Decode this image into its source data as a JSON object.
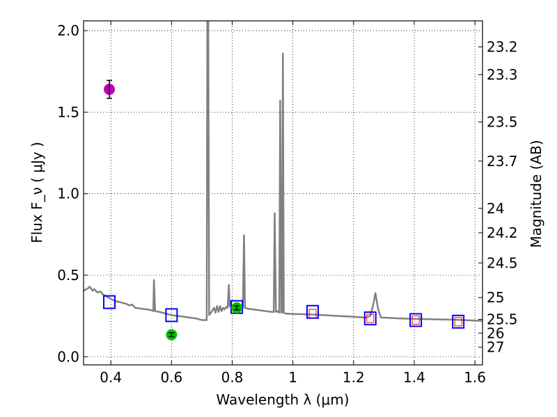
{
  "chart_data": {
    "type": "line",
    "title": "",
    "xlabel": "Wavelength  λ (μm)",
    "ylabel": "Flux  F_ν  ( μJy )",
    "y2label": "Magnitude (AB)",
    "xlim": [
      0.31,
      1.625
    ],
    "ylim": [
      -0.05,
      2.06
    ],
    "grid": true,
    "grid_style": "dotted",
    "xticks": [
      0.4,
      0.6,
      0.8,
      1.0,
      1.2,
      1.4,
      1.6
    ],
    "xtick_labels": [
      "0.4",
      "0.6",
      "0.8",
      "1",
      "1.2",
      "1.4",
      "1.6"
    ],
    "yticks": [
      0.0,
      0.5,
      1.0,
      1.5,
      2.0
    ],
    "ytick_labels": [
      "0.0",
      "0.5",
      "1.0",
      "1.5",
      "2.0"
    ],
    "magnitude_ticks": [
      {
        "label": "23.2",
        "flux": 1.9
      },
      {
        "label": "23.3",
        "flux": 1.73
      },
      {
        "label": "23.5",
        "flux": 1.44
      },
      {
        "label": "23.7",
        "flux": 1.2
      },
      {
        "label": "24",
        "flux": 0.91
      },
      {
        "label": "24.2",
        "flux": 0.76
      },
      {
        "label": "24.5",
        "flux": 0.575
      },
      {
        "label": "25",
        "flux": 0.363
      },
      {
        "label": "25.5",
        "flux": 0.229
      },
      {
        "label": "26",
        "flux": 0.145
      },
      {
        "label": "27",
        "flux": 0.058
      }
    ],
    "series": [
      {
        "name": "model spectrum",
        "style": "line",
        "color": "#808080",
        "points": [
          [
            0.31,
            0.405
          ],
          [
            0.325,
            0.42
          ],
          [
            0.33,
            0.43
          ],
          [
            0.34,
            0.405
          ],
          [
            0.345,
            0.415
          ],
          [
            0.355,
            0.395
          ],
          [
            0.365,
            0.4
          ],
          [
            0.375,
            0.38
          ],
          [
            0.385,
            0.37
          ],
          [
            0.395,
            0.36
          ],
          [
            0.405,
            0.35
          ],
          [
            0.41,
            0.345
          ],
          [
            0.415,
            0.335
          ],
          [
            0.42,
            0.34
          ],
          [
            0.43,
            0.335
          ],
          [
            0.44,
            0.33
          ],
          [
            0.45,
            0.325
          ],
          [
            0.46,
            0.315
          ],
          [
            0.47,
            0.32
          ],
          [
            0.48,
            0.3
          ],
          [
            0.5,
            0.295
          ],
          [
            0.52,
            0.29
          ],
          [
            0.535,
            0.285
          ],
          [
            0.54,
            0.28
          ],
          [
            0.542,
            0.47
          ],
          [
            0.546,
            0.28
          ],
          [
            0.56,
            0.275
          ],
          [
            0.58,
            0.265
          ],
          [
            0.6,
            0.255
          ],
          [
            0.62,
            0.25
          ],
          [
            0.64,
            0.245
          ],
          [
            0.66,
            0.24
          ],
          [
            0.68,
            0.235
          ],
          [
            0.7,
            0.225
          ],
          [
            0.71,
            0.225
          ],
          [
            0.716,
            0.225
          ],
          [
            0.718,
            2.06
          ],
          [
            0.721,
            2.06
          ],
          [
            0.724,
            0.255
          ],
          [
            0.73,
            0.27
          ],
          [
            0.74,
            0.3
          ],
          [
            0.745,
            0.27
          ],
          [
            0.75,
            0.31
          ],
          [
            0.755,
            0.275
          ],
          [
            0.76,
            0.31
          ],
          [
            0.765,
            0.28
          ],
          [
            0.77,
            0.3
          ],
          [
            0.775,
            0.29
          ],
          [
            0.78,
            0.305
          ],
          [
            0.785,
            0.3
          ],
          [
            0.789,
            0.44
          ],
          [
            0.792,
            0.31
          ],
          [
            0.8,
            0.3
          ],
          [
            0.81,
            0.295
          ],
          [
            0.82,
            0.3
          ],
          [
            0.83,
            0.305
          ],
          [
            0.835,
            0.3
          ],
          [
            0.839,
            0.745
          ],
          [
            0.842,
            0.3
          ],
          [
            0.85,
            0.295
          ],
          [
            0.87,
            0.29
          ],
          [
            0.89,
            0.285
          ],
          [
            0.91,
            0.28
          ],
          [
            0.93,
            0.275
          ],
          [
            0.937,
            0.275
          ],
          [
            0.94,
            0.88
          ],
          [
            0.944,
            0.275
          ],
          [
            0.95,
            0.28
          ],
          [
            0.955,
            0.27
          ],
          [
            0.958,
            1.57
          ],
          [
            0.962,
            0.27
          ],
          [
            0.964,
            0.27
          ],
          [
            0.967,
            1.86
          ],
          [
            0.97,
            0.27
          ],
          [
            0.975,
            0.265
          ],
          [
            1.0,
            0.262
          ],
          [
            1.05,
            0.26
          ],
          [
            1.1,
            0.255
          ],
          [
            1.15,
            0.25
          ],
          [
            1.2,
            0.245
          ],
          [
            1.24,
            0.24
          ],
          [
            1.255,
            0.25
          ],
          [
            1.265,
            0.32
          ],
          [
            1.272,
            0.39
          ],
          [
            1.28,
            0.3
          ],
          [
            1.29,
            0.24
          ],
          [
            1.3,
            0.24
          ],
          [
            1.35,
            0.235
          ],
          [
            1.4,
            0.232
          ],
          [
            1.45,
            0.23
          ],
          [
            1.5,
            0.228
          ],
          [
            1.55,
            0.226
          ],
          [
            1.6,
            0.222
          ],
          [
            1.625,
            0.22
          ]
        ]
      },
      {
        "name": "model band fluxes (blue)",
        "style": "square",
        "color": "#0000ff",
        "points": [
          [
            0.395,
            0.335
          ],
          [
            0.6,
            0.255
          ],
          [
            0.815,
            0.305
          ],
          [
            1.065,
            0.275
          ],
          [
            1.255,
            0.235
          ],
          [
            1.405,
            0.225
          ],
          [
            1.545,
            0.215
          ]
        ]
      },
      {
        "name": "model band fluxes (red)",
        "style": "small-square",
        "color": "#ff0000",
        "points": [
          [
            1.065,
            0.265
          ],
          [
            1.255,
            0.235
          ],
          [
            1.405,
            0.225
          ],
          [
            1.545,
            0.215
          ]
        ]
      },
      {
        "name": "observed (magenta)",
        "style": "circle-errorbar",
        "color": "#bf00bf",
        "points": [
          [
            0.395,
            1.64,
            0.055
          ]
        ]
      },
      {
        "name": "observed (green)",
        "style": "circle-errorbar",
        "color": "#00bf00",
        "points": [
          [
            0.6,
            0.135,
            0.012
          ],
          [
            0.815,
            0.3,
            0.012
          ]
        ]
      }
    ]
  }
}
